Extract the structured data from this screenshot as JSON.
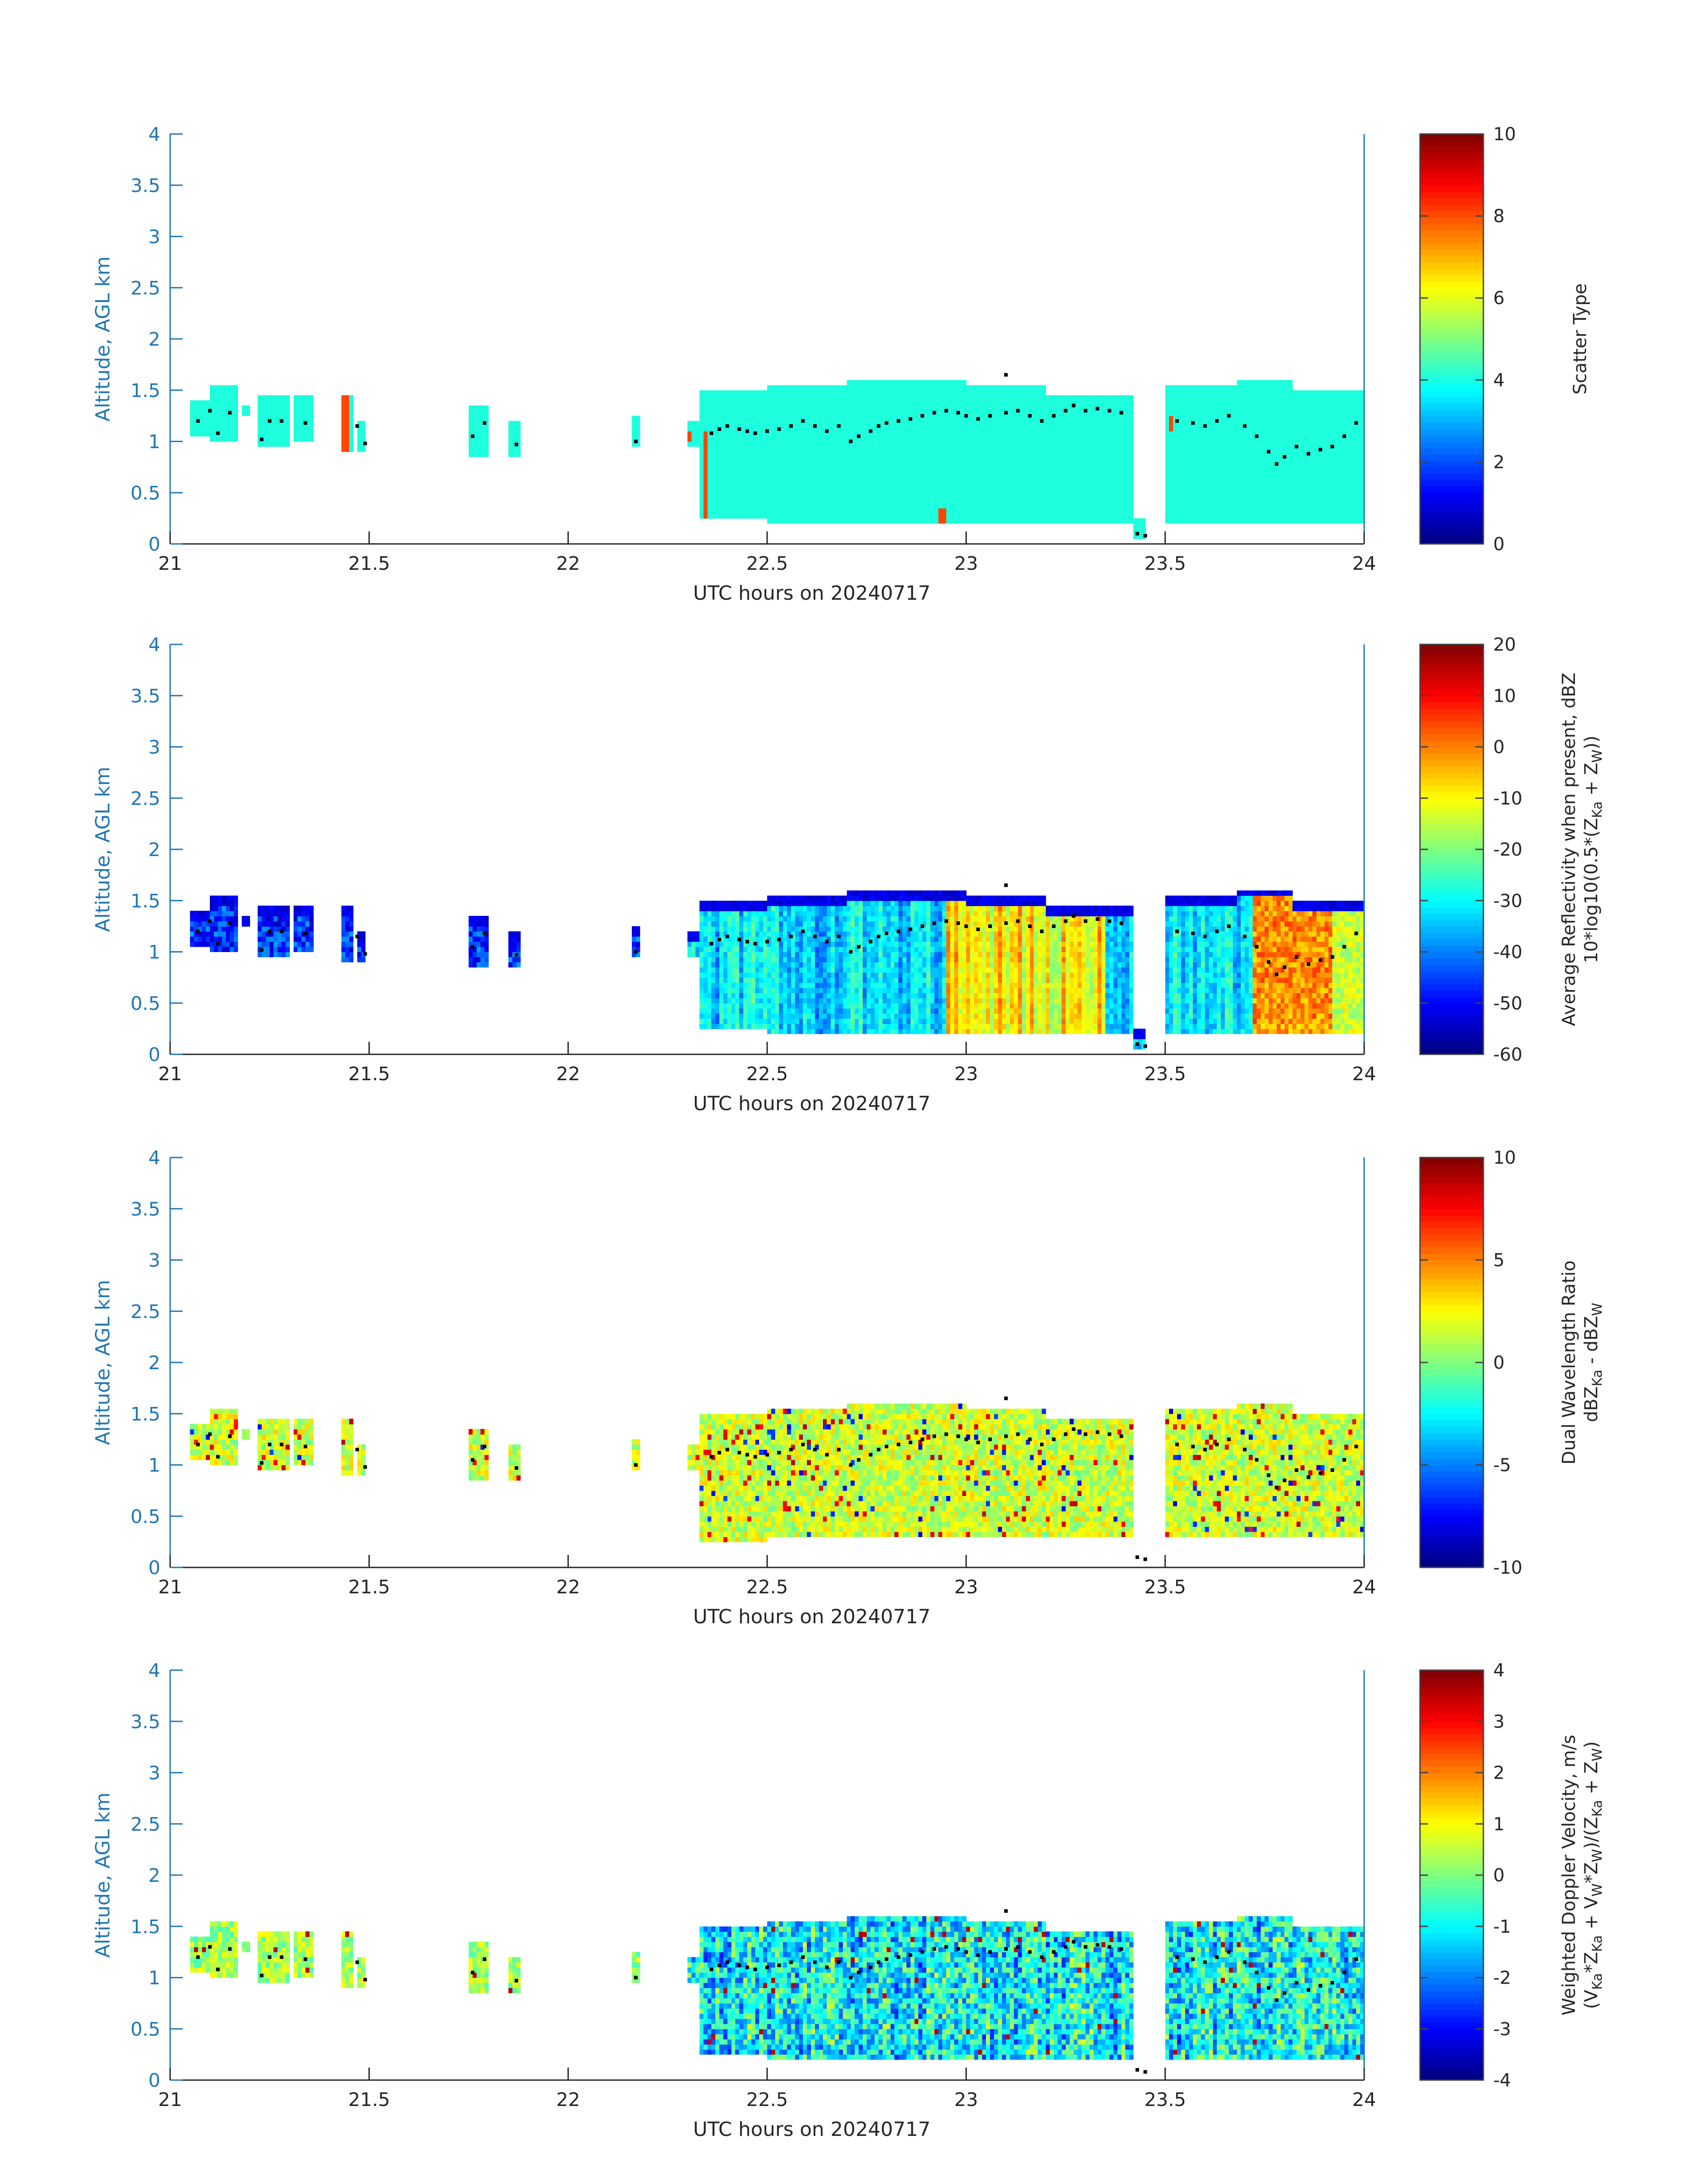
{
  "colors": {
    "axis": "#1f77b4",
    "cb_border": "#444444",
    "text": "#262626",
    "scatter_fill": "#1dffdd",
    "scatter_spike": "#ff4500",
    "cloud_top_marker": "#000000"
  },
  "colormap": "jet",
  "chart_data": [
    {
      "type": "heatmap",
      "title": "",
      "xlabel": "UTC hours on 20240717",
      "ylabel": "Altitude, AGL km",
      "xlim": [
        21,
        24
      ],
      "ylim": [
        0,
        4
      ],
      "xticks": [
        "21",
        "21.5",
        "22",
        "22.5",
        "23",
        "23.5",
        "24"
      ],
      "yticks": [
        "0",
        "0.5",
        "1",
        "1.5",
        "2",
        "2.5",
        "3",
        "3.5",
        "4"
      ],
      "colorbar": {
        "label": "Scatter Type",
        "range": [
          0,
          10
        ],
        "ticks": [
          "0",
          "2",
          "4",
          "6",
          "8",
          "10"
        ]
      },
      "field": "scatter_type",
      "dominant_value": 4.0,
      "spike_value": 8.5
    },
    {
      "type": "heatmap",
      "title": "",
      "xlabel": "UTC hours on 20240717",
      "ylabel": "Altitude, AGL km",
      "xlim": [
        21,
        24
      ],
      "ylim": [
        0,
        4
      ],
      "xticks": [
        "21",
        "21.5",
        "22",
        "22.5",
        "23",
        "23.5",
        "24"
      ],
      "yticks": [
        "0",
        "0.5",
        "1",
        "1.5",
        "2",
        "2.5",
        "3",
        "3.5",
        "4"
      ],
      "colorbar": {
        "label": "Average Reflectivity when present, dBZ",
        "label2": "10*log10(0.5*(Z_Ka + Z_W))",
        "range": [
          -60,
          20
        ],
        "ticks": [
          "-60",
          "-50",
          "-40",
          "-30",
          "-20",
          "-10",
          "0",
          "10",
          "20"
        ]
      },
      "field": "reflectivity_dbz",
      "typical_range": [
        -55,
        5
      ]
    },
    {
      "type": "heatmap",
      "title": "",
      "xlabel": "UTC hours on 20240717",
      "ylabel": "Altitude, AGL km",
      "xlim": [
        21,
        24
      ],
      "ylim": [
        0,
        4
      ],
      "xticks": [
        "21",
        "21.5",
        "22",
        "22.5",
        "23",
        "23.5",
        "24"
      ],
      "yticks": [
        "0",
        "0.5",
        "1",
        "1.5",
        "2",
        "2.5",
        "3",
        "3.5",
        "4"
      ],
      "colorbar": {
        "label": "Dual Wavelength Ratio",
        "label2": "dBZ_Ka - dBZ_W",
        "range": [
          -10,
          10
        ],
        "ticks": [
          "-10",
          "-5",
          "0",
          "5",
          "10"
        ]
      },
      "field": "dwr_db",
      "typical_range": [
        -1,
        4
      ]
    },
    {
      "type": "heatmap",
      "title": "",
      "xlabel": "UTC hours on 20240717",
      "ylabel": "Altitude, AGL km",
      "xlim": [
        21,
        24
      ],
      "ylim": [
        0,
        4
      ],
      "xticks": [
        "21",
        "21.5",
        "22",
        "22.5",
        "23",
        "23.5",
        "24"
      ],
      "yticks": [
        "0",
        "0.5",
        "1",
        "1.5",
        "2",
        "2.5",
        "3",
        "3.5",
        "4"
      ],
      "colorbar": {
        "label": "Weighted Doppler Velocity, m/s",
        "label2": "(V_Ka*Z_Ka + V_W*Z_W)/(Z_Ka + Z_W)",
        "range": [
          -4,
          4
        ],
        "ticks": [
          "-4",
          "-3",
          "-2",
          "-1",
          "0",
          "1",
          "2",
          "3",
          "4"
        ]
      },
      "field": "doppler_velocity_ms",
      "typical_range": [
        -2.5,
        0.5
      ]
    }
  ],
  "cloud_columns": [
    {
      "x0": 21.05,
      "x1": 21.1,
      "base": 1.05,
      "top": 1.4
    },
    {
      "x0": 21.1,
      "x1": 21.17,
      "base": 1.0,
      "top": 1.55
    },
    {
      "x0": 21.18,
      "x1": 21.2,
      "base": 1.25,
      "top": 1.35
    },
    {
      "x0": 21.22,
      "x1": 21.3,
      "base": 0.95,
      "top": 1.45
    },
    {
      "x0": 21.31,
      "x1": 21.36,
      "base": 1.0,
      "top": 1.45
    },
    {
      "x0": 21.43,
      "x1": 21.46,
      "base": 0.9,
      "top": 1.45
    },
    {
      "x0": 21.47,
      "x1": 21.49,
      "base": 0.9,
      "top": 1.2
    },
    {
      "x0": 21.75,
      "x1": 21.8,
      "base": 0.85,
      "top": 1.35
    },
    {
      "x0": 21.85,
      "x1": 21.88,
      "base": 0.85,
      "top": 1.2
    },
    {
      "x0": 22.16,
      "x1": 22.18,
      "base": 0.95,
      "top": 1.25
    },
    {
      "x0": 22.3,
      "x1": 22.33,
      "base": 0.95,
      "top": 1.2
    },
    {
      "x0": 22.33,
      "x1": 22.5,
      "base": 0.25,
      "top": 1.5
    },
    {
      "x0": 22.5,
      "x1": 22.7,
      "base": 0.2,
      "top": 1.55
    },
    {
      "x0": 22.7,
      "x1": 23.0,
      "base": 0.2,
      "top": 1.58
    },
    {
      "x0": 23.0,
      "x1": 23.2,
      "base": 0.2,
      "top": 1.55
    },
    {
      "x0": 23.2,
      "x1": 23.42,
      "base": 0.2,
      "top": 1.45
    },
    {
      "x0": 23.42,
      "x1": 23.45,
      "base": 0.05,
      "top": 0.25
    },
    {
      "x0": 23.5,
      "x1": 23.68,
      "base": 0.2,
      "top": 1.55
    },
    {
      "x0": 23.68,
      "x1": 23.82,
      "base": 0.2,
      "top": 1.62
    },
    {
      "x0": 23.82,
      "x1": 24.0,
      "base": 0.2,
      "top": 1.5
    }
  ],
  "cloud_top_markers": {
    "x": [
      21.07,
      21.1,
      21.12,
      21.15,
      21.23,
      21.25,
      21.28,
      21.34,
      21.47,
      21.49,
      21.76,
      21.79,
      21.87,
      22.17,
      22.36,
      22.38,
      22.4,
      22.43,
      22.45,
      22.47,
      22.5,
      22.53,
      22.56,
      22.59,
      22.62,
      22.65,
      22.68,
      22.71,
      22.73,
      22.76,
      22.78,
      22.8,
      22.83,
      22.86,
      22.89,
      22.92,
      22.95,
      22.98,
      23.0,
      23.03,
      23.06,
      23.1,
      23.13,
      23.16,
      23.19,
      23.22,
      23.25,
      23.27,
      23.3,
      23.33,
      23.36,
      23.39,
      23.53,
      23.57,
      23.6,
      23.63,
      23.66,
      23.7,
      23.73,
      23.76,
      23.78,
      23.8,
      23.83,
      23.86,
      23.89,
      23.92,
      23.95,
      23.98
    ],
    "y": [
      1.2,
      1.3,
      1.08,
      1.28,
      1.02,
      1.2,
      1.2,
      1.18,
      1.15,
      0.98,
      1.05,
      1.18,
      0.97,
      1.0,
      1.08,
      1.12,
      1.15,
      1.12,
      1.1,
      1.08,
      1.1,
      1.12,
      1.15,
      1.2,
      1.15,
      1.1,
      1.15,
      1.0,
      1.05,
      1.1,
      1.15,
      1.18,
      1.2,
      1.22,
      1.25,
      1.28,
      1.3,
      1.28,
      1.25,
      1.22,
      1.25,
      1.28,
      1.3,
      1.25,
      1.2,
      1.25,
      1.3,
      1.35,
      1.3,
      1.32,
      1.3,
      1.28,
      1.2,
      1.18,
      1.15,
      1.2,
      1.25,
      1.15,
      1.05,
      0.9,
      0.78,
      0.85,
      0.95,
      0.88,
      0.92,
      0.95,
      1.05,
      1.18
    ]
  },
  "extra_markers": [
    {
      "x": 23.1,
      "y": 1.65
    },
    {
      "x": 23.43,
      "y": 0.1
    },
    {
      "x": 23.45,
      "y": 0.08
    }
  ]
}
